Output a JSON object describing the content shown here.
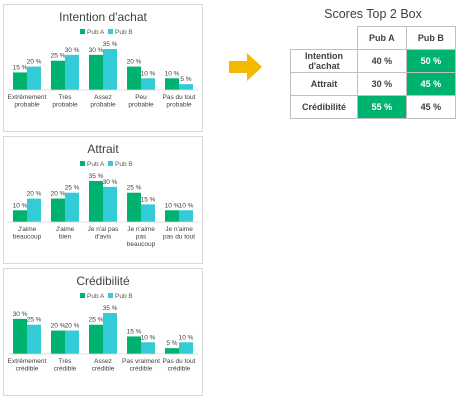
{
  "colors": {
    "pubA": "#00b26f",
    "pubB": "#33ccd6",
    "arrow": "#f5b800",
    "highlight": "#00b26f"
  },
  "chart_data": [
    {
      "type": "bar",
      "title": "Intention d'achat",
      "legend_position": "top",
      "categories": [
        [
          "Extrêmement",
          "probable"
        ],
        [
          "Très",
          "probable"
        ],
        [
          "Assez",
          "probable"
        ],
        [
          "Peu",
          "probable"
        ],
        [
          "Pas du tout",
          "probable"
        ]
      ],
      "series": [
        {
          "name": "Pub A",
          "values": [
            15,
            25,
            30,
            20,
            10
          ]
        },
        {
          "name": "Pub B",
          "values": [
            20,
            30,
            35,
            10,
            5
          ]
        }
      ],
      "ylim": [
        0,
        35
      ],
      "grid": false
    },
    {
      "type": "bar",
      "title": "Attrait",
      "legend_position": "top",
      "categories": [
        [
          "J'aime",
          "beaucoup"
        ],
        [
          "J'aime",
          "bien"
        ],
        [
          "Je n'ai pas",
          "d'avis"
        ],
        [
          "Je n'aime",
          "pas",
          "beaucoup"
        ],
        [
          "Je n'aime",
          "pas du tout"
        ]
      ],
      "series": [
        {
          "name": "Pub A",
          "values": [
            10,
            20,
            35,
            25,
            10
          ]
        },
        {
          "name": "Pub B",
          "values": [
            20,
            25,
            30,
            15,
            10
          ]
        }
      ],
      "ylim": [
        0,
        35
      ],
      "grid": false
    },
    {
      "type": "bar",
      "title": "Crédibilité",
      "legend_position": "top",
      "categories": [
        [
          "Extrêmement",
          "crédible"
        ],
        [
          "Très",
          "crédible"
        ],
        [
          "Assez",
          "crédible"
        ],
        [
          "Pas vraiment",
          "crédible"
        ],
        [
          "Pas du tout",
          "crédible"
        ]
      ],
      "series": [
        {
          "name": "Pub A",
          "values": [
            30,
            20,
            25,
            15,
            5
          ]
        },
        {
          "name": "Pub B",
          "values": [
            25,
            20,
            35,
            10,
            10
          ]
        }
      ],
      "ylim": [
        0,
        35
      ],
      "grid": false
    }
  ],
  "value_suffix": " %",
  "top2": {
    "title": "Scores Top 2 Box",
    "columns": [
      "Pub A",
      "Pub B"
    ],
    "rows": [
      {
        "label": "Intention d'achat",
        "values": [
          "40 %",
          "50 %"
        ],
        "highlight": [
          false,
          true
        ]
      },
      {
        "label": "Attrait",
        "values": [
          "30 %",
          "45 %"
        ],
        "highlight": [
          false,
          true
        ]
      },
      {
        "label": "Crédibilité",
        "values": [
          "55 %",
          "45 %"
        ],
        "highlight": [
          true,
          false
        ]
      }
    ]
  }
}
